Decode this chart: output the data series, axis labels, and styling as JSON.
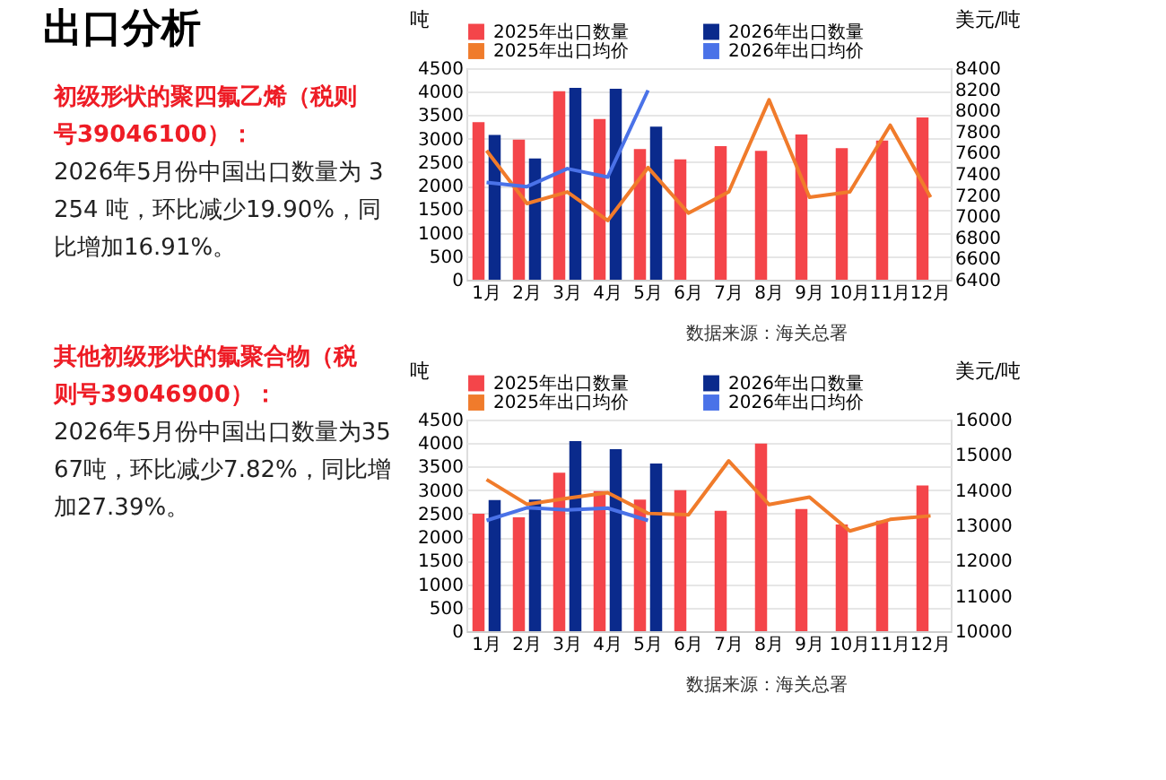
{
  "chart_data": [
    {
      "type": "other",
      "title": "出口分析",
      "annotations": [
        "初级形状的聚四氟乙烯（税则号39046100）：",
        "2026年5月份中国出口数量为 3254 吨，环比减少19.90%，同比增加16.91%。",
        "其他初级形状的氟聚合物（税则号39046900）：",
        "2026年5月份中国出口数量为3567吨，环比减少7.82%，同比增加27.39%。"
      ]
    },
    {
      "type": "bar",
      "categories": [
        "1月",
        "2月",
        "3月",
        "4月",
        "5月",
        "6月",
        "7月",
        "8月",
        "9月",
        "10月",
        "11月",
        "12月"
      ],
      "ylabel": "吨",
      "y2label": "美元/吨",
      "ylim": [
        0,
        4500
      ],
      "yticks": [
        0,
        500,
        1000,
        1500,
        2000,
        2500,
        3000,
        3500,
        4000,
        4500
      ],
      "y2lim": [
        6400,
        8400
      ],
      "y2ticks": [
        6400,
        6600,
        6800,
        7000,
        7200,
        7400,
        7600,
        7800,
        8000,
        8200,
        8400
      ],
      "grid": "y",
      "legend": "top",
      "marker": "none",
      "annotations": [
        "数据来源：海关总署"
      ],
      "series": [
        {
          "name": "2025年出口数量",
          "type": "bar",
          "color": "#f4454a",
          "values": [
            3350,
            2980,
            4010,
            3420,
            2780,
            2560,
            2840,
            2740,
            3090,
            2800,
            2960,
            3450
          ]
        },
        {
          "name": "2026年出口数量",
          "type": "bar",
          "color": "#0a2a8c",
          "values": [
            3080,
            2580,
            4080,
            4060,
            3254,
            null,
            null,
            null,
            null,
            null,
            null,
            null
          ]
        },
        {
          "name": "2025年出口均价",
          "type": "line",
          "axis": "y2",
          "color": "#f07b2b",
          "values": [
            7620,
            7120,
            7230,
            6960,
            7460,
            7030,
            7230,
            8100,
            7180,
            7230,
            7860,
            7180
          ]
        },
        {
          "name": "2026年出口均价",
          "type": "line",
          "axis": "y2",
          "color": "#4a72e8",
          "values": [
            7320,
            7280,
            7450,
            7370,
            8190,
            null,
            null,
            null,
            null,
            null,
            null,
            null
          ]
        }
      ]
    },
    {
      "type": "bar",
      "categories": [
        "1月",
        "2月",
        "3月",
        "4月",
        "5月",
        "6月",
        "7月",
        "8月",
        "9月",
        "10月",
        "11月",
        "12月"
      ],
      "ylabel": "吨",
      "y2label": "美元/吨",
      "ylim": [
        0,
        4500
      ],
      "yticks": [
        0,
        500,
        1000,
        1500,
        2000,
        2500,
        3000,
        3500,
        4000,
        4500
      ],
      "y2lim": [
        10000,
        16000
      ],
      "y2ticks": [
        10000,
        11000,
        12000,
        13000,
        14000,
        15000,
        16000
      ],
      "grid": "y",
      "legend": "top",
      "marker": "none",
      "annotations": [
        "数据来源：海关总署"
      ],
      "series": [
        {
          "name": "2025年出口数量",
          "type": "bar",
          "color": "#f4454a",
          "values": [
            2500,
            2420,
            3370,
            2980,
            2800,
            3000,
            2560,
            3990,
            2600,
            2270,
            2350,
            3100
          ]
        },
        {
          "name": "2026年出口数量",
          "type": "bar",
          "color": "#0a2a8c",
          "values": [
            2790,
            2800,
            4040,
            3870,
            3567,
            null,
            null,
            null,
            null,
            null,
            null,
            null
          ]
        },
        {
          "name": "2025年出口均价",
          "type": "line",
          "axis": "y2",
          "color": "#f07b2b",
          "values": [
            14300,
            13600,
            13770,
            13930,
            13340,
            13300,
            14830,
            13590,
            13800,
            12840,
            13170,
            13270
          ]
        },
        {
          "name": "2026年出口均价",
          "type": "line",
          "axis": "y2",
          "color": "#4a72e8",
          "values": [
            13140,
            13500,
            13440,
            13490,
            13140,
            null,
            null,
            null,
            null,
            null,
            null,
            null
          ]
        }
      ]
    }
  ]
}
